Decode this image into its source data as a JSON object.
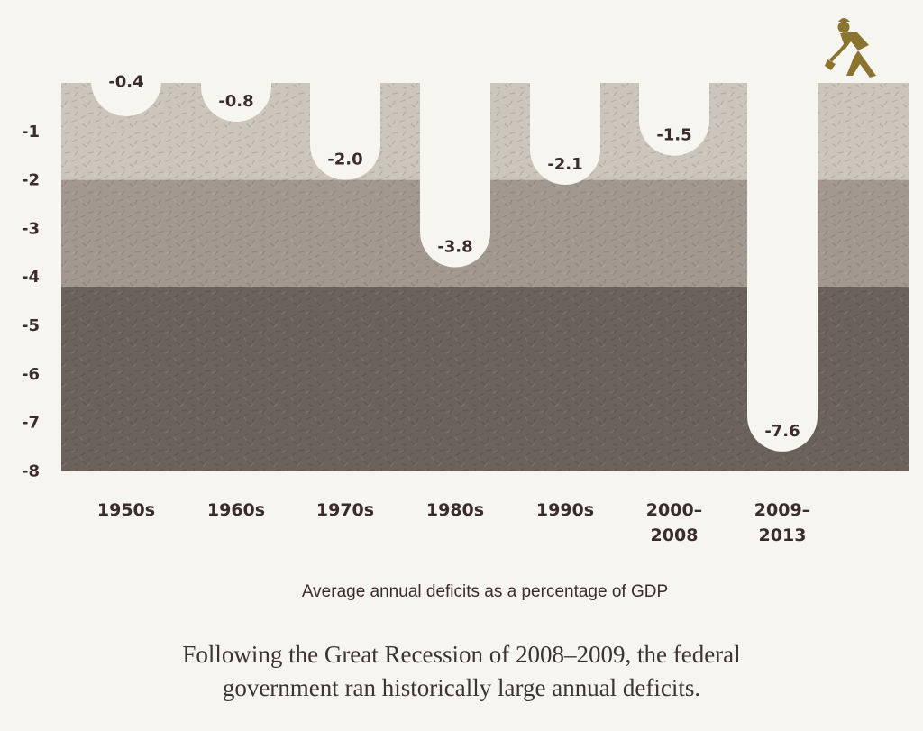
{
  "chart_data": {
    "type": "bar",
    "title": "",
    "xlabel": "Average annual deficits as a percentage of GDP",
    "ylabel": "",
    "categories": [
      [
        "1950s"
      ],
      [
        "1960s"
      ],
      [
        "1970s"
      ],
      [
        "1980s"
      ],
      [
        "1990s"
      ],
      [
        "2000–",
        "2008"
      ],
      [
        "2009–",
        "2013"
      ]
    ],
    "values": [
      -0.4,
      -0.8,
      -2.0,
      -3.8,
      -2.1,
      -1.5,
      -7.6
    ],
    "value_labels": [
      "-0.4",
      "-0.8",
      "-2.0",
      "-3.8",
      "-2.1",
      "-1.5",
      "-7.6"
    ],
    "y_ticks": [
      -1,
      -2,
      -3,
      -4,
      -5,
      -6,
      -7,
      -8
    ],
    "ylim": [
      0,
      -8
    ],
    "bands": [
      {
        "from": 0,
        "to": -2,
        "color": "#ccc5bb"
      },
      {
        "from": -2,
        "to": -4.2,
        "color": "#a29890"
      },
      {
        "from": -4.2,
        "to": -8,
        "color": "#6c625c"
      }
    ],
    "label_color": "#3a2c2a",
    "figure_icon": "digger-with-shovel-icon",
    "figure_color": "#8b7430"
  },
  "caption": {
    "line1": "Following the Great Recession of 2008–2009, the federal",
    "line2": "government ran historically large annual deficits."
  }
}
